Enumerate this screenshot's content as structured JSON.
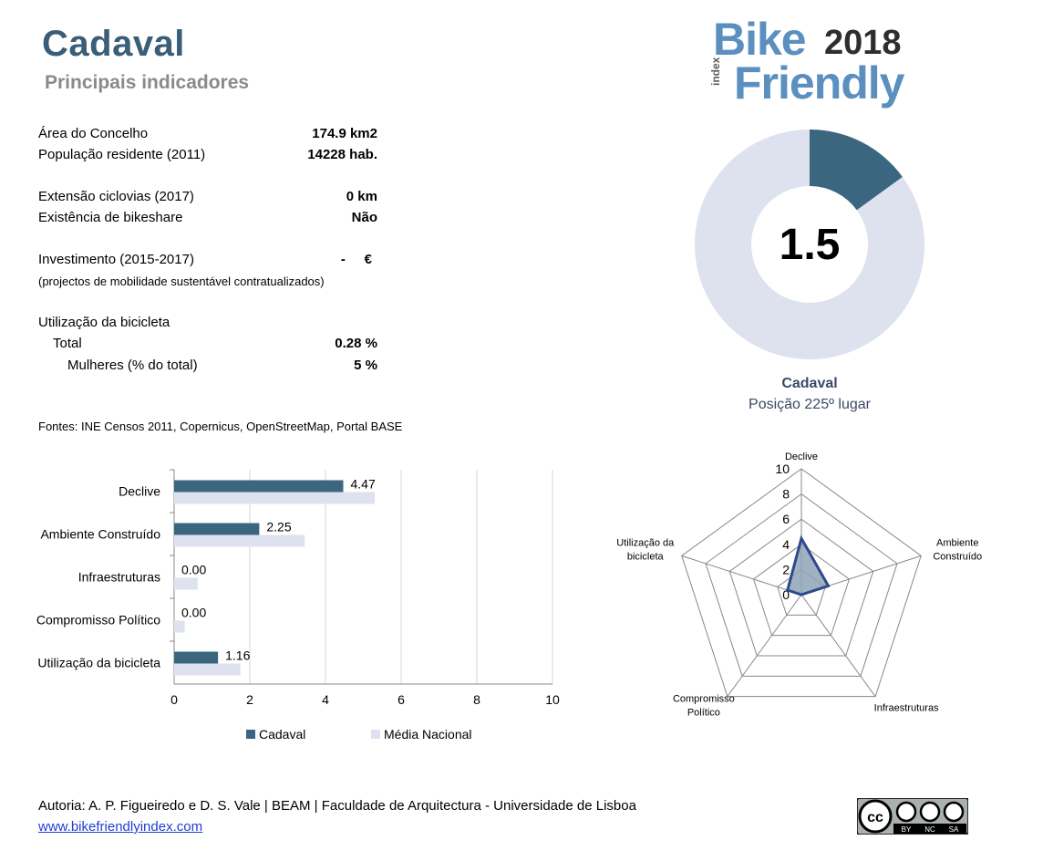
{
  "header": {
    "title": "Cadaval",
    "subtitle": "Principais indicadores"
  },
  "logo": {
    "bike": "Bike",
    "year": "2018",
    "index": "index",
    "friendly": "Friendly"
  },
  "indicators": [
    {
      "label": "Área do Concelho",
      "value": "174.9 km2"
    },
    {
      "label": "População residente (2011)",
      "value": "14228 hab."
    },
    {
      "label": "Extensão ciclovias (2017)",
      "value": "0 km"
    },
    {
      "label": "Existência de bikeshare",
      "value": "Não"
    },
    {
      "label": "Investimento (2015-2017)",
      "value": "-     €"
    },
    {
      "label": "Utilização da bicicleta",
      "value": ""
    },
    {
      "label": "Total",
      "value": "0.28 %"
    },
    {
      "label": "Mulheres (% do total)",
      "value": "5 %"
    }
  ],
  "investment_note": "(projectos de mobilidade sustentável contratualizados)",
  "sources": "Fontes: INE Censos 2011, Copernicus, OpenStreetMap,  Portal BASE",
  "donut": {
    "score_text": "1.5",
    "location": "Cadaval",
    "position": "Posição 225º lugar"
  },
  "footer": {
    "authors": "Autoria: A. P. Figueiredo e D. S. Vale | BEAM | Faculdade de Arquitectura - Universidade de Lisboa",
    "link": "www.bikefriendlyindex.com"
  },
  "license": {
    "by": "BY",
    "nc": "NC",
    "sa": "SA"
  },
  "colors": {
    "primary": "#3b6680",
    "light": "#dde2ee",
    "grid": "#d4d4d4",
    "text": "#000000"
  },
  "chart_data": [
    {
      "type": "pie",
      "subtype": "donut",
      "values": [
        1.5,
        8.5
      ],
      "max": 10,
      "center_label": "1.5"
    },
    {
      "type": "bar",
      "orientation": "horizontal",
      "categories": [
        "Declive",
        "Ambiente Construído",
        "Infraestruturas",
        "Compromisso Político",
        "Utilização da bicicleta"
      ],
      "series": [
        {
          "name": "Cadaval",
          "values": [
            4.47,
            2.25,
            0.0,
            0.0,
            1.16
          ],
          "labels": [
            "4.47",
            "2.25",
            "0.00",
            "0.00",
            "1.16"
          ]
        },
        {
          "name": "Média Nacional",
          "values": [
            5.3,
            3.45,
            0.62,
            0.28,
            1.75
          ]
        }
      ],
      "xlim": [
        0,
        10
      ],
      "xticks": [
        0,
        2,
        4,
        6,
        8,
        10
      ],
      "grid": true,
      "legend": "bottom"
    },
    {
      "type": "radar",
      "axes": [
        "Declive",
        "Ambiente\nConstruído",
        "Infraestruturas",
        "Compromisso\nPolítico",
        "Utilização da\nbicicleta"
      ],
      "series": [
        {
          "name": "Cadaval",
          "values": [
            4.47,
            2.25,
            0.0,
            0.0,
            1.16
          ]
        }
      ],
      "rlim": [
        0,
        10
      ],
      "rticks": [
        0,
        2,
        4,
        6,
        8,
        10
      ]
    }
  ]
}
